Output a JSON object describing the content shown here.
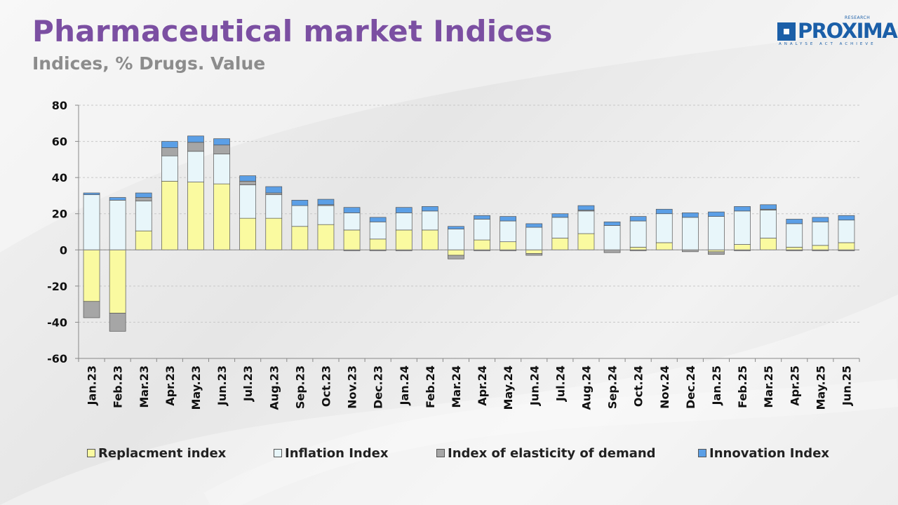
{
  "header": {
    "title": "Pharmaceutical market Indices",
    "subtitle": "Indices, % Drugs. Value"
  },
  "logo": {
    "name": "PROXIMA",
    "small": "RESEARCH",
    "tagline": "ANALYSE ACT ACHIEVE"
  },
  "colors": {
    "title": "#7b4fa2",
    "replacement": "#fafaa0",
    "inflation": "#e8f6fa",
    "elasticity": "#a6a6a6",
    "innovation": "#5b9fe6"
  },
  "chart_data": {
    "type": "bar",
    "stacked": true,
    "grid": true,
    "legend_position": "bottom",
    "ylim": [
      -60,
      80
    ],
    "yticks": [
      -60,
      -40,
      -20,
      0,
      20,
      40,
      60,
      80
    ],
    "categories": [
      "Jan.23",
      "Feb.23",
      "Mar.23",
      "Apr.23",
      "May.23",
      "Jun.23",
      "Jul.23",
      "Aug.23",
      "Sep.23",
      "Oct.23",
      "Nov.23",
      "Dec.23",
      "Jan.24",
      "Feb.24",
      "Mar.24",
      "Apr.24",
      "May.24",
      "Jun.24",
      "Jul.24",
      "Aug.24",
      "Sep.24",
      "Oct.24",
      "Nov.24",
      "Dec.24",
      "Jan.25",
      "Feb.25",
      "Mar.25",
      "Apr.25",
      "May.25",
      "Jun.25"
    ],
    "series": [
      {
        "name": "Replacment index",
        "color": "#fafaa0",
        "values": [
          -28.5,
          -35,
          10.5,
          38,
          37.5,
          36.5,
          17.5,
          17.5,
          13,
          14,
          11,
          6,
          11,
          11,
          -3,
          5.5,
          4.5,
          -2,
          6.5,
          9,
          0,
          1.5,
          4,
          0,
          -1,
          3,
          6.5,
          1.5,
          2.5,
          4
        ]
      },
      {
        "name": "Inflation Index",
        "color": "#e8f6fa",
        "values": [
          30.5,
          27.5,
          16.5,
          14,
          17,
          16.5,
          18.5,
          13,
          11.5,
          10.5,
          9.5,
          9.5,
          9.5,
          10.5,
          11.5,
          11.5,
          11.5,
          12.5,
          11.5,
          12.5,
          13.5,
          14.5,
          16,
          18,
          18.5,
          18.5,
          15.5,
          13,
          13,
          12.5
        ]
      },
      {
        "name": "Index of elasticity of demand",
        "color": "#a6a6a6",
        "values": [
          -9,
          -10,
          2,
          4.5,
          5,
          5,
          2,
          1,
          0,
          0.5,
          -0.5,
          -0.5,
          -0.5,
          0,
          -2,
          -0.5,
          -0.5,
          -1,
          0,
          0.5,
          -1.5,
          -0.5,
          0,
          -1,
          -1.5,
          -0.5,
          0.5,
          -0.5,
          -0.5,
          -0.5
        ]
      },
      {
        "name": "Innovation Index",
        "color": "#5b9fe6",
        "values": [
          1,
          1.5,
          2.5,
          3.5,
          3.5,
          3.5,
          3,
          3.5,
          3,
          3,
          3,
          2.5,
          3,
          2.5,
          1.5,
          2,
          2.5,
          2,
          2,
          2.5,
          2,
          2.5,
          2.5,
          2.5,
          2.5,
          2.5,
          2.5,
          2.5,
          2.5,
          2.5
        ]
      }
    ]
  }
}
